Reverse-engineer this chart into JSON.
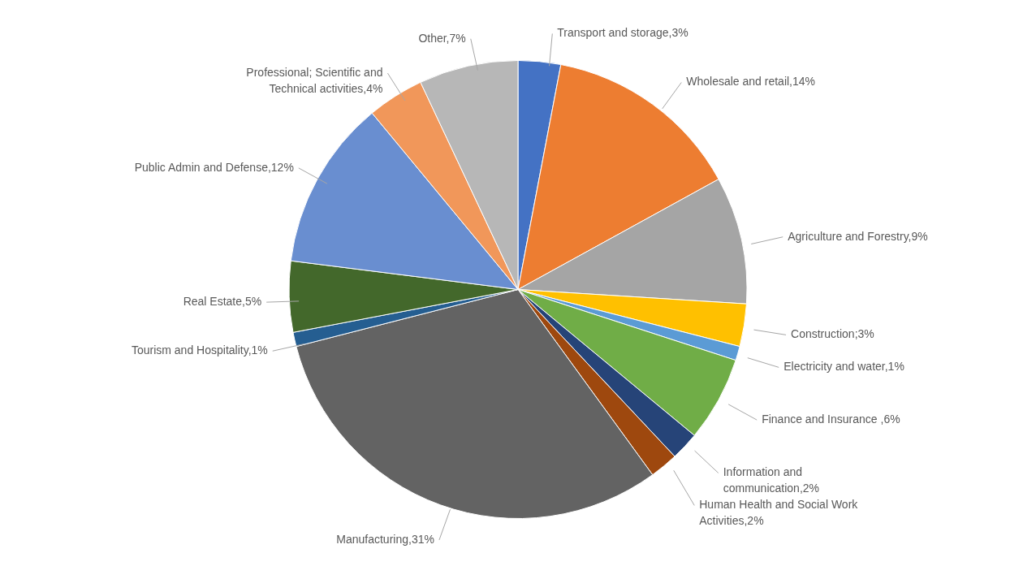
{
  "chart_data": {
    "type": "pie",
    "categories": [
      "Transport and storage,3%",
      "Wholesale and retail,14%",
      "Agriculture and Forestry,9%",
      "Construction;3%",
      "Electricity and water,1%",
      "Finance and Insurance ,6%",
      "Information and communication,2%",
      "Human Health and Social Work Activities,2%",
      "Manufacturing,31%",
      "Tourism and Hospitality,1%",
      "Real Estate,5%",
      "Public Admin and Defense,12%",
      "Professional; Scientific and Technical activities,4%",
      "Other,7%"
    ],
    "values": [
      3,
      14,
      9,
      3,
      1,
      6,
      2,
      2,
      31,
      1,
      5,
      12,
      4,
      7
    ],
    "colors": [
      "#4472c4",
      "#ed7d31",
      "#a5a5a5",
      "#ffc000",
      "#5b9bd5",
      "#70ad47",
      "#264478",
      "#9e480e",
      "#636363",
      "#255e91",
      "#43682b",
      "#698ed0",
      "#f1975a",
      "#b7b7b7"
    ]
  }
}
